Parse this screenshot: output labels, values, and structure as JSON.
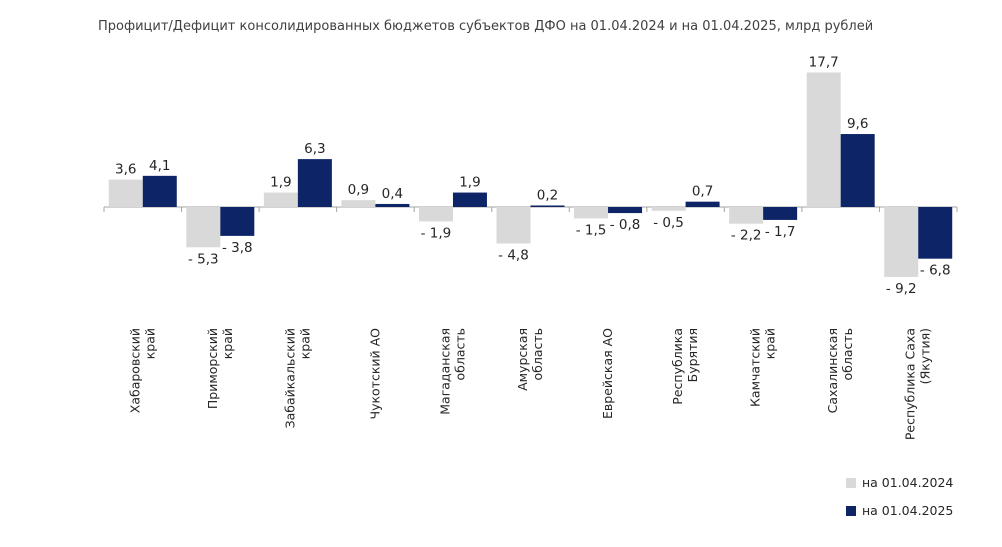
{
  "chart_data": {
    "type": "bar",
    "title": "Профицит/Дефицит консолидированных бюджетов субъектов ДФО на 01.04.2024 и на 01.04.2025, млрд рублей",
    "xlabel": "",
    "ylabel": "",
    "ylim": [
      -10,
      20
    ],
    "grid": false,
    "legend_position": "bottom-right",
    "categories": [
      [
        "Хабаровский",
        "край"
      ],
      [
        "Приморский",
        "край"
      ],
      [
        "Забайкальский",
        "край"
      ],
      [
        "Чукотский АО"
      ],
      [
        "Магаданская",
        "область"
      ],
      [
        "Амурская",
        "область"
      ],
      [
        "Еврейская АО"
      ],
      [
        "Республика",
        "Бурятия"
      ],
      [
        "Камчатский",
        "край"
      ],
      [
        "Сахалинская",
        "область"
      ],
      [
        "Республика Саха",
        "(Якутия)"
      ]
    ],
    "series": [
      {
        "name": "на 01.04.2024",
        "color": "#d9d9d9",
        "values": [
          3.6,
          -5.3,
          1.9,
          0.9,
          -1.9,
          -4.8,
          -1.5,
          -0.5,
          -2.2,
          17.7,
          -9.2
        ],
        "labels": [
          "3,6",
          "- 5,3",
          "1,9",
          "0,9",
          "- 1,9",
          "- 4,8",
          "- 1,5",
          "- 0,5",
          "- 2,2",
          "17,7",
          "- 9,2"
        ]
      },
      {
        "name": "на 01.04.2025",
        "color": "#0d2466",
        "values": [
          4.1,
          -3.8,
          6.3,
          0.4,
          1.9,
          0.2,
          -0.8,
          0.7,
          -1.7,
          9.6,
          -6.8
        ],
        "labels": [
          "4,1",
          "- 3,8",
          "6,3",
          "0,4",
          "1,9",
          "0,2",
          "- 0,8",
          "0,7",
          "- 1,7",
          "9,6",
          "- 6,8"
        ]
      }
    ]
  }
}
